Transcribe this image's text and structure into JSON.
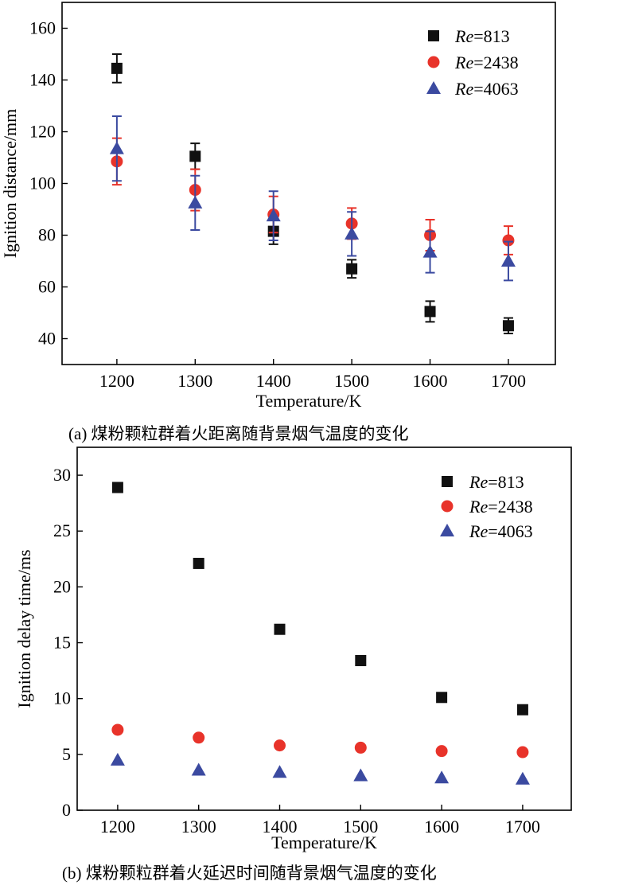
{
  "chart_data": [
    {
      "id": "a",
      "type": "scatter",
      "caption": "(a) 煤粉颗粒群着火距离随背景烟气温度的变化",
      "xlabel": "Temperature/K",
      "ylabel": "Ignition distance/mm",
      "xlim": [
        1130,
        1760
      ],
      "ylim": [
        30,
        170
      ],
      "xticks": [
        1200,
        1300,
        1400,
        1500,
        1600,
        1700
      ],
      "yticks": [
        40,
        60,
        80,
        100,
        120,
        140,
        160
      ],
      "legend_position": "top-right",
      "series": [
        {
          "name_prefix": "Re",
          "name_value": "=813",
          "marker": "square",
          "color": "#111111",
          "error_color": "#111111",
          "x": [
            1200,
            1300,
            1400,
            1500,
            1600,
            1700
          ],
          "y": [
            144.5,
            110.5,
            81.5,
            67,
            50.5,
            45
          ],
          "err": [
            5.5,
            5,
            5,
            3.5,
            4,
            3
          ]
        },
        {
          "name_prefix": "Re",
          "name_value": "=2438",
          "marker": "circle",
          "color": "#e8332a",
          "error_color": "#e8332a",
          "x": [
            1200,
            1300,
            1400,
            1500,
            1600,
            1700
          ],
          "y": [
            108.5,
            97.5,
            88,
            84.5,
            80,
            78
          ],
          "err": [
            9,
            8,
            7,
            6,
            6,
            5.5
          ]
        },
        {
          "name_prefix": "Re",
          "name_value": "=4063",
          "marker": "triangle",
          "color": "#3b4aa0",
          "error_color": "#3b4aa0",
          "x": [
            1200,
            1300,
            1400,
            1500,
            1600,
            1700
          ],
          "y": [
            113.5,
            92.5,
            87.5,
            80.5,
            73.5,
            70
          ],
          "err": [
            12.5,
            10.5,
            9.5,
            8.5,
            8,
            7.5
          ]
        }
      ]
    },
    {
      "id": "b",
      "type": "scatter",
      "caption": "(b) 煤粉颗粒群着火延迟时间随背景烟气温度的变化",
      "xlabel": "Temperature/K",
      "ylabel": "Ignition delay time/ms",
      "xlim": [
        1150,
        1760
      ],
      "ylim": [
        0,
        32.5
      ],
      "xticks": [
        1200,
        1300,
        1400,
        1500,
        1600,
        1700
      ],
      "yticks": [
        0,
        5,
        10,
        15,
        20,
        25,
        30
      ],
      "legend_position": "top-right",
      "series": [
        {
          "name_prefix": "Re",
          "name_value": "=813",
          "marker": "square",
          "color": "#111111",
          "x": [
            1200,
            1300,
            1400,
            1500,
            1600,
            1700
          ],
          "y": [
            28.9,
            22.1,
            16.2,
            13.4,
            10.1,
            9.0
          ]
        },
        {
          "name_prefix": "Re",
          "name_value": "=2438",
          "marker": "circle",
          "color": "#e8332a",
          "x": [
            1200,
            1300,
            1400,
            1500,
            1600,
            1700
          ],
          "y": [
            7.2,
            6.5,
            5.8,
            5.6,
            5.3,
            5.2
          ]
        },
        {
          "name_prefix": "Re",
          "name_value": "=4063",
          "marker": "triangle",
          "color": "#3b4aa0",
          "x": [
            1200,
            1300,
            1400,
            1500,
            1600,
            1700
          ],
          "y": [
            4.5,
            3.6,
            3.4,
            3.1,
            2.9,
            2.8
          ]
        }
      ]
    }
  ]
}
